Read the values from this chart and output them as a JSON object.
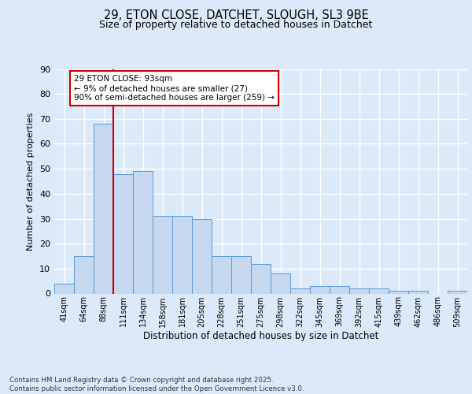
{
  "title1": "29, ETON CLOSE, DATCHET, SLOUGH, SL3 9BE",
  "title2": "Size of property relative to detached houses in Datchet",
  "xlabel": "Distribution of detached houses by size in Datchet",
  "ylabel": "Number of detached properties",
  "categories": [
    "41sqm",
    "64sqm",
    "88sqm",
    "111sqm",
    "134sqm",
    "158sqm",
    "181sqm",
    "205sqm",
    "228sqm",
    "251sqm",
    "275sqm",
    "298sqm",
    "322sqm",
    "345sqm",
    "369sqm",
    "392sqm",
    "415sqm",
    "439sqm",
    "462sqm",
    "486sqm",
    "509sqm"
  ],
  "values": [
    4,
    15,
    68,
    48,
    49,
    31,
    31,
    30,
    15,
    15,
    12,
    8,
    2,
    3,
    3,
    2,
    2,
    1,
    1,
    0,
    1
  ],
  "bar_color": "#c5d8f0",
  "bar_edge_color": "#5b9bd5",
  "vline_color": "#cc0000",
  "annotation_text": "29 ETON CLOSE: 93sqm\n← 9% of detached houses are smaller (27)\n90% of semi-detached houses are larger (259) →",
  "annotation_box_color": "#ffffff",
  "annotation_box_edge": "#cc0000",
  "bg_color": "#dce9f8",
  "plot_bg_color": "#dce9f8",
  "fig_bg_color": "#dce9f8",
  "grid_color": "#ffffff",
  "footer": "Contains HM Land Registry data © Crown copyright and database right 2025.\nContains public sector information licensed under the Open Government Licence v3.0.",
  "ylim": [
    0,
    90
  ],
  "yticks": [
    0,
    10,
    20,
    30,
    40,
    50,
    60,
    70,
    80,
    90
  ],
  "title1_fontsize": 10.5,
  "title2_fontsize": 9.0
}
